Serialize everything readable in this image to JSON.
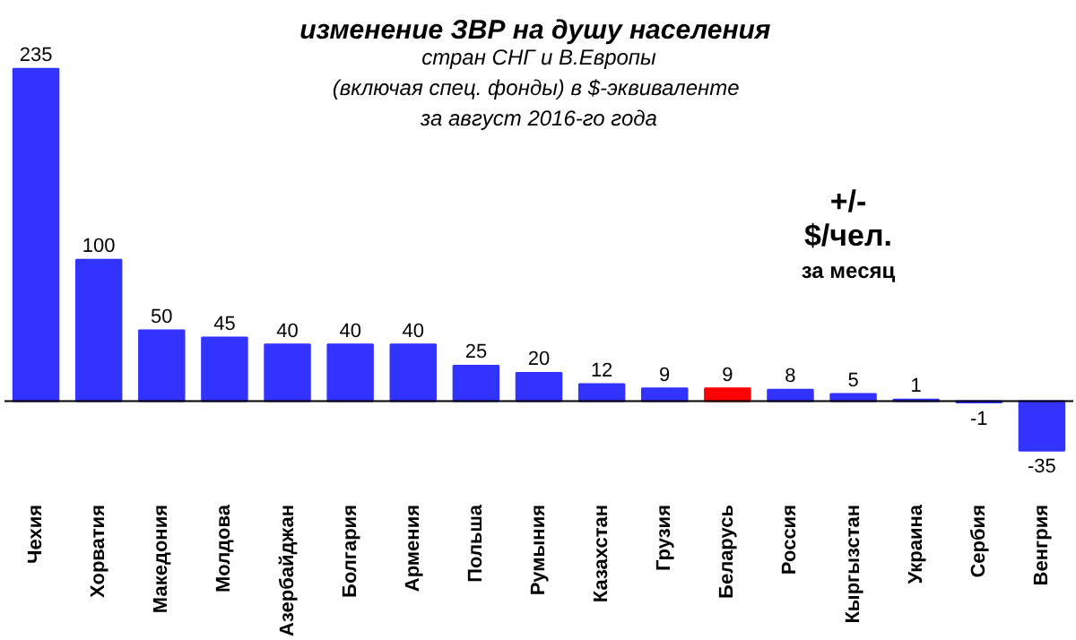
{
  "chart_data": {
    "type": "bar",
    "title": "изменение  ЗВР на душу населения",
    "subtitle": "стран СНГ и В.Европы\n(включая  спец. фонды) в $-эквиваленте\nза август 2016-го года",
    "categories": [
      "Чехия",
      "Хорватия",
      "Македония",
      "Молдова",
      "Азербайджан",
      "Болгария",
      "Армения",
      "Польша",
      "Румыния",
      "Казахстан",
      "Грузия",
      "Беларусь",
      "Россия",
      "Кыргызстан",
      "Украина",
      "Сербия",
      "Венгрия"
    ],
    "values": [
      235,
      100,
      50,
      45,
      40,
      40,
      40,
      25,
      20,
      12,
      9,
      9,
      8,
      5,
      1,
      -1,
      -35
    ],
    "colors": [
      "#3333ff",
      "#3333ff",
      "#3333ff",
      "#3333ff",
      "#3333ff",
      "#3333ff",
      "#3333ff",
      "#3333ff",
      "#3333ff",
      "#3333ff",
      "#3333ff",
      "#ff0000",
      "#3333ff",
      "#3333ff",
      "#3333ff",
      "#3333ff",
      "#3333ff"
    ],
    "data_labels": true,
    "tick_labels": "x",
    "grid": false,
    "annotations": [
      "+/-\n$/чел.\nза месяц"
    ]
  }
}
